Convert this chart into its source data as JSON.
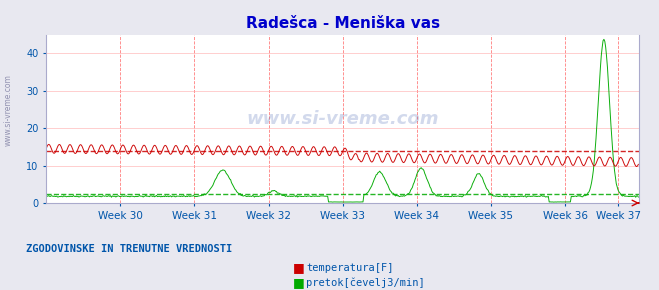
{
  "title": "Radešca - Meniška vas",
  "title_color": "#0000cc",
  "title_fontsize": 11,
  "bg_color": "#e8e8f0",
  "plot_bg_color": "#ffffff",
  "xlim": [
    0,
    672
  ],
  "ylim": [
    0,
    45
  ],
  "yticks": [
    0,
    10,
    20,
    30,
    40
  ],
  "week_labels": [
    "Week 30",
    "Week 31",
    "Week 32",
    "Week 33",
    "Week 34",
    "Week 35",
    "Week 36",
    "Week 37"
  ],
  "week_positions": [
    84,
    168,
    252,
    336,
    420,
    504,
    588,
    648
  ],
  "temp_color": "#cc0000",
  "flow_color": "#00aa00",
  "temp_avg": 14.0,
  "flow_avg": 2.3,
  "legend_title": "ZGODOVINSKE IN TRENUTNE VREDNOSTI",
  "legend_color": "#0055aa",
  "axis_label_color": "#0055aa",
  "watermark": "www.si-vreme.com",
  "n_points": 672
}
